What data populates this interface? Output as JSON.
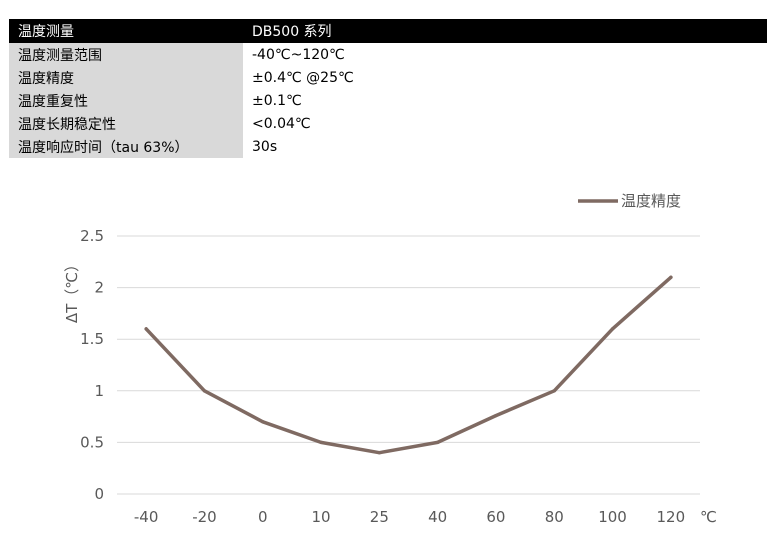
{
  "spec_table": {
    "header": {
      "label": "温度测量",
      "value": "DB500 系列"
    },
    "rows": [
      {
        "label": "温度测量范围",
        "value": "-40℃~120℃"
      },
      {
        "label": "温度精度",
        "value": "±0.4℃  @25℃"
      },
      {
        "label": "温度重复性",
        "value": "±0.1℃"
      },
      {
        "label": "温度长期稳定性",
        "value": "<0.04℃"
      },
      {
        "label": "温度响应时间（tau 63%）",
        "value": "30s"
      }
    ]
  },
  "chart_data": {
    "type": "line",
    "categories": [
      "-40",
      "-20",
      "0",
      "10",
      "25",
      "40",
      "60",
      "80",
      "100",
      "120"
    ],
    "series": [
      {
        "name": "温度精度",
        "values": [
          1.6,
          1.0,
          0.7,
          0.5,
          0.4,
          0.5,
          0.76,
          1.0,
          1.6,
          2.1
        ],
        "color": "#7f6a62"
      }
    ],
    "ylabel": "ΔT（℃）",
    "x_unit": "℃",
    "yticks": [
      "0",
      "0.5",
      "1",
      "1.5",
      "2",
      "2.5"
    ],
    "ylim": [
      0,
      2.5
    ],
    "grid": true,
    "legend": "top-right"
  }
}
